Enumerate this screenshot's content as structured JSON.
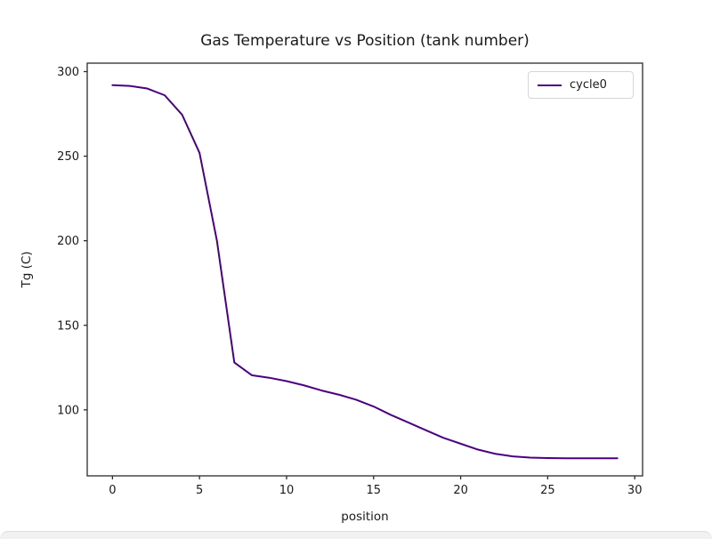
{
  "chart_data": {
    "type": "line",
    "title": "Gas Temperature vs Position (tank number)",
    "xlabel": "position",
    "ylabel": "Tg (C)",
    "x": [
      0,
      1,
      2,
      3,
      4,
      5,
      6,
      7,
      8,
      9,
      10,
      11,
      12,
      13,
      14,
      15,
      16,
      17,
      18,
      19,
      20,
      21,
      22,
      23,
      24,
      25,
      26,
      27,
      28,
      29
    ],
    "series": [
      {
        "name": "cycle0",
        "color": "#4B0082",
        "values": [
          292,
          291.5,
          290,
          286,
          274.5,
          252,
          200,
          128,
          120.5,
          119,
          117,
          114.5,
          111.5,
          109,
          106,
          102,
          97,
          92.5,
          88,
          83.5,
          80,
          76.5,
          74,
          72.5,
          71.8,
          71.5,
          71.4,
          71.4,
          71.4,
          71.4
        ]
      }
    ],
    "xlim": [
      -1.45,
      30.45
    ],
    "ylim": [
      61,
      305
    ],
    "xticks": [
      0,
      5,
      10,
      15,
      20,
      25,
      30
    ],
    "yticks": [
      100,
      150,
      200,
      250,
      300
    ],
    "grid": false,
    "legend_position": "upper right",
    "axis_color": "#2b2b2b",
    "tick_label_color": "#1a1a1a"
  }
}
